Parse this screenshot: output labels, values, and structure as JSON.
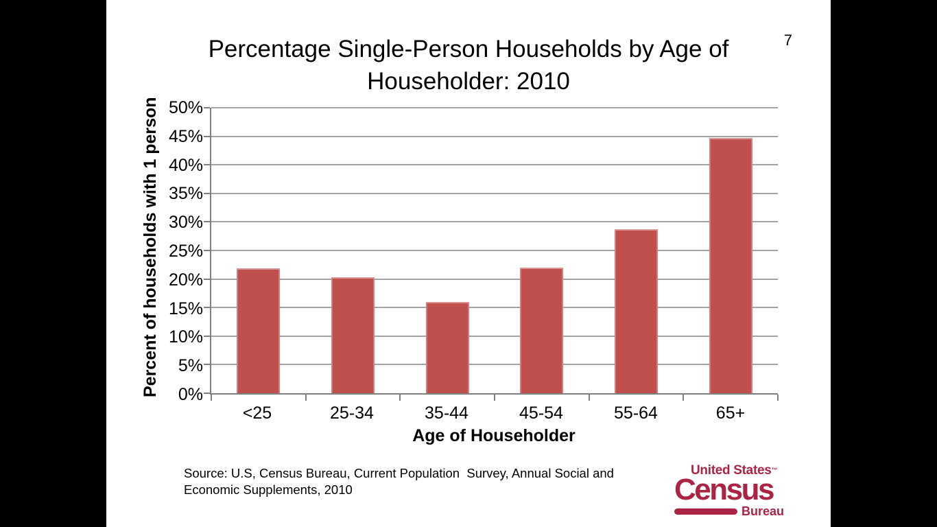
{
  "slide": {
    "page_number": "7",
    "title": "Percentage Single-Person Households by Age of Householder: 2010",
    "source": "Source: U.S, Census Bureau, Current Population  Survey, Annual Social and\nEconomic Supplements, 2010"
  },
  "logo": {
    "top": "United States",
    "tm": "™",
    "main": "Census",
    "sub": "Bureau",
    "color": "#ab2443"
  },
  "chart_data": {
    "type": "bar",
    "title": "Percentage Single-Person Households by Age of Householder: 2010",
    "categories": [
      "<25",
      "25-34",
      "35-44",
      "45-54",
      "55-64",
      "65+"
    ],
    "values": [
      21.9,
      20.3,
      16.0,
      22.0,
      28.7,
      44.7
    ],
    "xlabel": "Age of Householder",
    "ylabel": "Percent of households with 1 person",
    "ylim": [
      0,
      50
    ],
    "ytick_step": 5,
    "ytick_labels": [
      "0%",
      "5%",
      "10%",
      "15%",
      "20%",
      "25%",
      "30%",
      "35%",
      "40%",
      "45%",
      "50%"
    ],
    "grid": true,
    "legend": false,
    "bar_color": "#c0504d",
    "bar_edge_color": "#d99694",
    "gridline_color": "#a3a3a3",
    "axis_color": "#7f7f7f",
    "background": "#ffffff"
  },
  "colors": {
    "canvas": "#000000",
    "slide": "#ffffff",
    "text": "#000000"
  }
}
